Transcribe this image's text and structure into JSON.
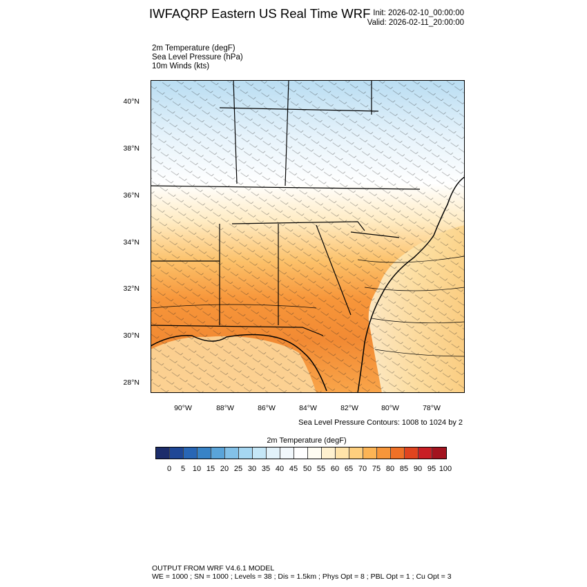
{
  "header": {
    "title": "IWFAQRP Eastern US Real Time WRF",
    "init": "Init: 2026-02-10_00:00:00",
    "valid": "Valid: 2026-02-11_20:00:00"
  },
  "fields": {
    "temperature": "2m Temperature   (degF)",
    "pressure": "Sea Level Pressure   (hPa)",
    "winds": "10m Winds   (kts)"
  },
  "map": {
    "lat_labels": [
      "40°N",
      "38°N",
      "36°N",
      "34°N",
      "32°N",
      "30°N",
      "28°N"
    ],
    "lon_labels": [
      "90°W",
      "88°W",
      "86°W",
      "84°W",
      "82°W",
      "80°W",
      "78°W"
    ]
  },
  "contour_note": "Sea Level Pressure Contours: 1008 to 1024 by 2",
  "colorbar": {
    "title": "2m Temperature  (degF)",
    "ticks": [
      "0",
      "5",
      "10",
      "15",
      "20",
      "25",
      "30",
      "35",
      "40",
      "45",
      "50",
      "55",
      "60",
      "65",
      "70",
      "75",
      "80",
      "85",
      "90",
      "95",
      "100"
    ],
    "colors": [
      "#1c2d6b",
      "#1f4796",
      "#2866b5",
      "#3883c6",
      "#5aa4d9",
      "#83c1e8",
      "#a6d7f2",
      "#c5e7f7",
      "#e2f2fa",
      "#f2f8fc",
      "#ffffff",
      "#fffdf3",
      "#fff1cf",
      "#ffe3a9",
      "#fecf7e",
      "#fcb455",
      "#f7963a",
      "#ef7127",
      "#e0441f",
      "#c91f25",
      "#a3141f"
    ]
  },
  "footer": {
    "line1": "OUTPUT FROM WRF V4.6.1 MODEL",
    "line2": "WE = 1000 ; SN = 1000 ; Levels = 38 ; Dis = 1.5km ; Phys Opt = 8 ; PBL Opt = 1 ; Cu Opt = 3"
  }
}
